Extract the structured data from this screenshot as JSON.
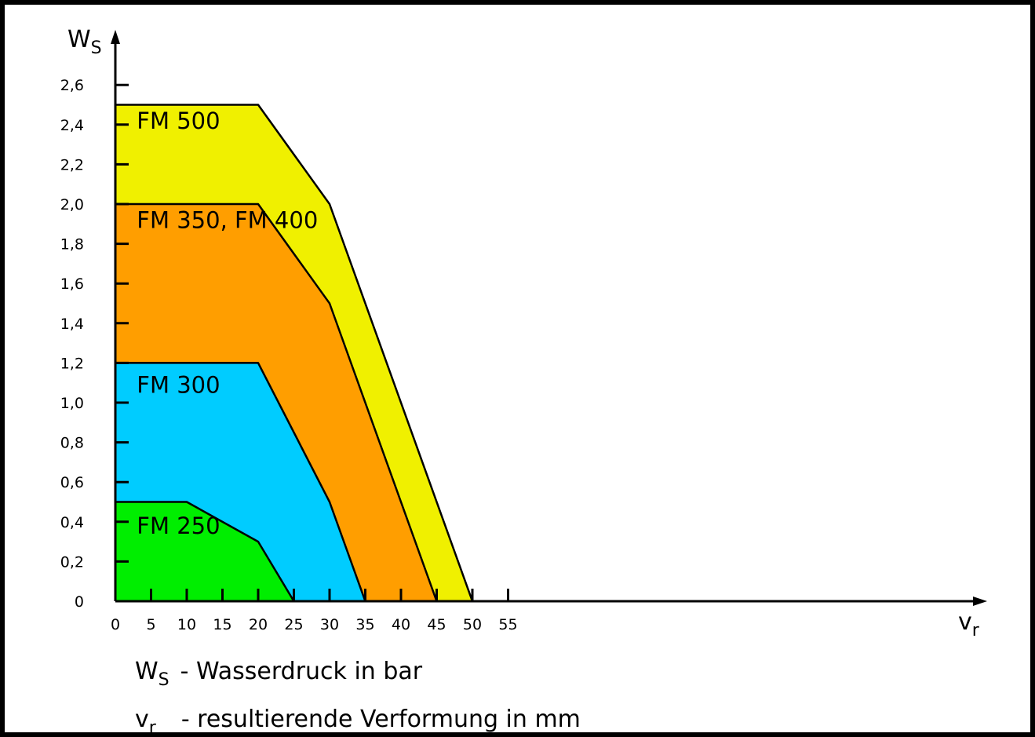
{
  "chart_data": {
    "type": "area",
    "x_axis": {
      "symbol": "v",
      "subscript": "r",
      "range": [
        0,
        60
      ],
      "ticks": [
        0,
        5,
        10,
        15,
        20,
        25,
        30,
        35,
        40,
        45,
        50,
        55
      ],
      "tick_labels": [
        "0",
        "5",
        "10",
        "15",
        "20",
        "25",
        "30",
        "35",
        "40",
        "45",
        "50",
        "55"
      ]
    },
    "y_axis": {
      "symbol": "W",
      "subscript": "S",
      "range": [
        0,
        2.75
      ],
      "ticks": [
        0,
        0.2,
        0.4,
        0.6,
        0.8,
        1.0,
        1.2,
        1.4,
        1.6,
        1.8,
        2.0,
        2.2,
        2.4,
        2.6
      ],
      "tick_labels": [
        "0",
        "0,2",
        "0,4",
        "0,6",
        "0,8",
        "1,0",
        "1,2",
        "1,4",
        "1,6",
        "1,8",
        "2,0",
        "2,2",
        "2,4",
        "2,6"
      ]
    },
    "series": [
      {
        "name": "FM 500",
        "color": "#f0f000",
        "points": [
          [
            0,
            2.5
          ],
          [
            20,
            2.5
          ],
          [
            30,
            2.0
          ],
          [
            50,
            0
          ]
        ],
        "label_anchor": [
          3,
          2.38
        ]
      },
      {
        "name": "FM 350, FM 400",
        "color": "#ff9e00",
        "points": [
          [
            0,
            2.0
          ],
          [
            20,
            2.0
          ],
          [
            30,
            1.5
          ],
          [
            45,
            0
          ]
        ],
        "label_anchor": [
          3,
          1.88
        ]
      },
      {
        "name": "FM 300",
        "color": "#00ccff",
        "points": [
          [
            0,
            1.2
          ],
          [
            20,
            1.2
          ],
          [
            30,
            0.5
          ],
          [
            35,
            0
          ]
        ],
        "label_anchor": [
          3,
          1.05
        ]
      },
      {
        "name": "FM 250",
        "color": "#00ee00",
        "points": [
          [
            0,
            0.5
          ],
          [
            10,
            0.5
          ],
          [
            20,
            0.3
          ],
          [
            25,
            0
          ]
        ],
        "label_anchor": [
          3,
          0.34
        ]
      }
    ],
    "legend": [
      {
        "symbol": "W",
        "subscript": "S",
        "text": "- Wasserdruck in bar"
      },
      {
        "symbol": "v",
        "subscript": "r",
        "text": "- resultierende Verformung in mm"
      }
    ]
  }
}
